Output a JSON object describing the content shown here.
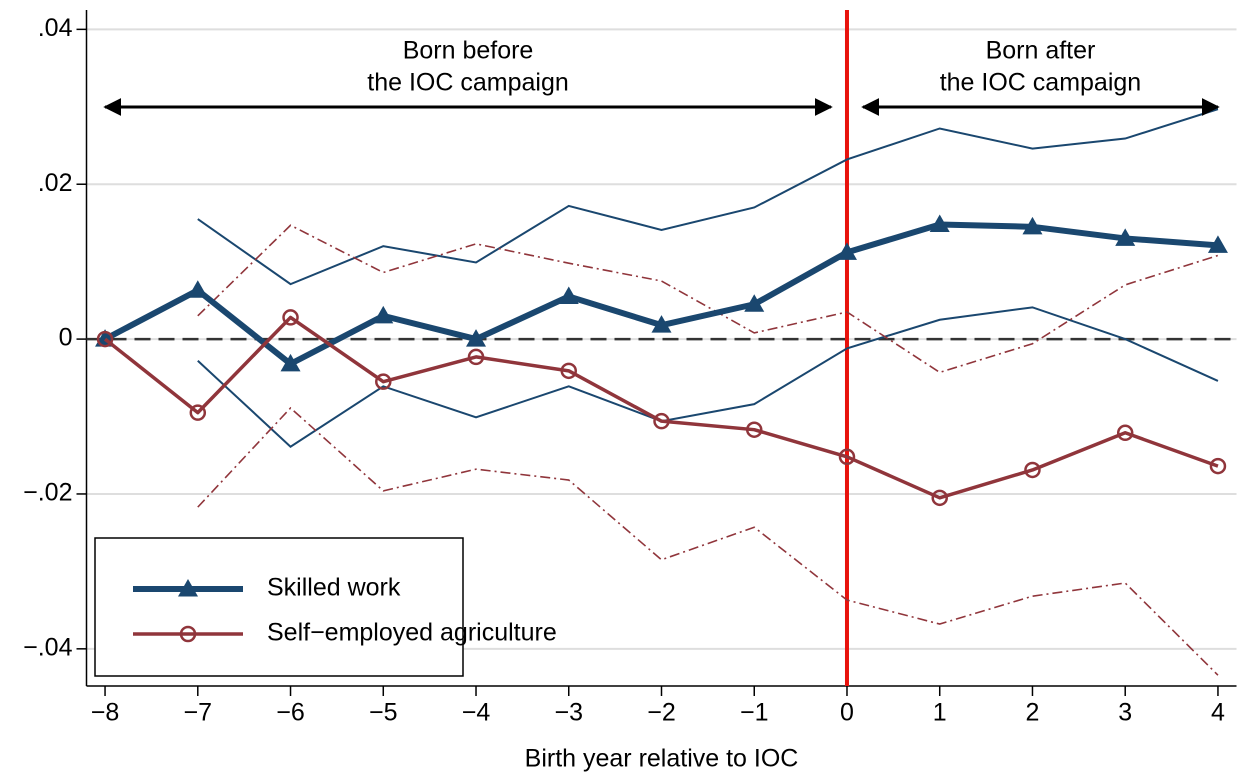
{
  "chart_data": {
    "type": "line",
    "x_label": "Birth year relative to IOC",
    "x": [
      -8,
      -7,
      -6,
      -5,
      -4,
      -3,
      -2,
      -1,
      0,
      1,
      2,
      3,
      4
    ],
    "series": [
      {
        "name": "Skilled work",
        "color": "#1a476f",
        "marker": "triangle",
        "values": [
          0,
          0.0063,
          -0.0032,
          0.003,
          0,
          0.0055,
          0.0018,
          0.0045,
          0.0112,
          0.0148,
          0.0145,
          0.013,
          0.0121
        ],
        "upper": [
          null,
          0.0155,
          0.0071,
          0.012,
          0.0099,
          0.0172,
          0.0141,
          0.017,
          0.0232,
          0.0272,
          0.0246,
          0.0259,
          0.0297
        ],
        "lower": [
          null,
          -0.0028,
          -0.0139,
          -0.0061,
          -0.0101,
          -0.0061,
          -0.0106,
          -0.0084,
          -0.0012,
          0.0025,
          0.0041,
          0,
          -0.0054
        ]
      },
      {
        "name": "Self−employed agriculture",
        "color": "#90353b",
        "marker": "circle",
        "values": [
          0,
          -0.0095,
          0.0028,
          -0.0055,
          -0.0023,
          -0.0041,
          -0.0106,
          -0.0117,
          -0.0152,
          -0.0205,
          -0.0169,
          -0.0121,
          -0.0164
        ],
        "upper": [
          null,
          0.003,
          0.0147,
          0.0086,
          0.0123,
          0.0098,
          0.0075,
          0.0008,
          0.0035,
          -0.0043,
          -0.0006,
          0.007,
          0.0108
        ],
        "lower": [
          null,
          -0.0217,
          -0.0089,
          -0.0196,
          -0.0168,
          -0.0182,
          -0.0285,
          -0.0243,
          -0.0337,
          -0.0368,
          -0.0332,
          -0.0315,
          -0.0434
        ]
      }
    ],
    "xlim": [
      -8.2,
      4.2
    ],
    "ylim": [
      -0.0448,
      0.0425
    ],
    "xticks": [
      {
        "value": -8,
        "label": "−8"
      },
      {
        "value": -7,
        "label": "−7"
      },
      {
        "value": -6,
        "label": "−6"
      },
      {
        "value": -5,
        "label": "−5"
      },
      {
        "value": -4,
        "label": "−4"
      },
      {
        "value": -3,
        "label": "−3"
      },
      {
        "value": -2,
        "label": "−2"
      },
      {
        "value": -1,
        "label": "−1"
      },
      0,
      1,
      2,
      3,
      4
    ],
    "yticks": [
      {
        "value": -0.04,
        "label": "−.04"
      },
      {
        "value": -0.02,
        "label": "−.02"
      },
      0,
      {
        "value": 0.02,
        "label": ".02"
      },
      {
        "value": 0.04,
        "label": ".04"
      }
    ],
    "grid": true,
    "hline": 0,
    "vline": 0,
    "vline_color": "#e8120c",
    "annotations": [
      {
        "lines": [
          "Born before",
          "the IOC campaign"
        ]
      },
      {
        "lines": [
          "Born after",
          "the IOC campaign"
        ]
      }
    ],
    "legend": "lower left"
  }
}
